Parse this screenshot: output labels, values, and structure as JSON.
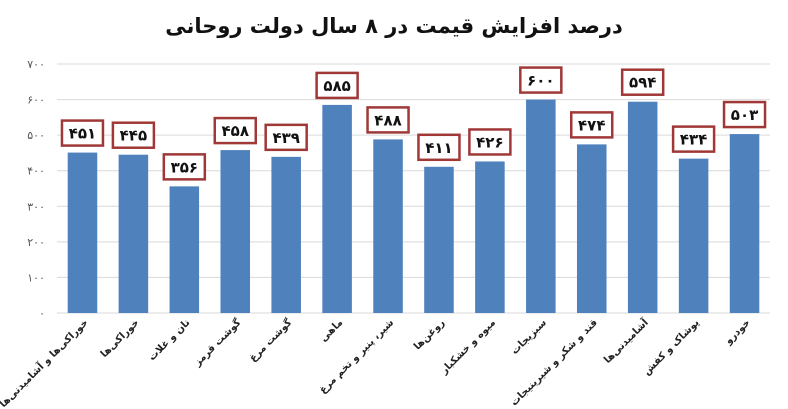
{
  "chart_data": {
    "type": "bar",
    "title": "درصد افزایش قیمت در ۸ سال دولت روحانی",
    "categories": [
      "خوراکی‌ها و آشامیدنی‌ها",
      "خوراکی‌ها",
      "نان و غلات",
      "گوشت قرمز",
      "گوشت مرغ",
      "ماهی",
      "شیر، پنیر و تخم مرغ",
      "روغن‌ها",
      "میوه و خشکبار",
      "سبزیجات",
      "قند و شکر و شیرینیجات",
      "آشامیدنی‌ها",
      "پوشاک و کفش",
      "خودرو"
    ],
    "values": [
      451,
      445,
      356,
      458,
      439,
      585,
      488,
      411,
      426,
      600,
      474,
      594,
      434,
      503
    ],
    "data_labels": [
      "۴۵۱",
      "۴۴۵",
      "۳۵۶",
      "۴۵۸",
      "۴۳۹",
      "۵۸۵",
      "۴۸۸",
      "۴۱۱",
      "۴۲۶",
      "۶۰۰",
      "۴۷۴",
      "۵۹۴",
      "۴۳۴",
      "۵۰۳"
    ],
    "y_ticks": [
      0,
      100,
      200,
      300,
      400,
      500,
      600,
      700
    ],
    "y_tick_labels": [
      "۰",
      "۱۰۰",
      "۲۰۰",
      "۳۰۰",
      "۴۰۰",
      "۵۰۰",
      "۶۰۰",
      "۷۰۰"
    ],
    "ylim": [
      0,
      700
    ],
    "grid": true,
    "legend": "none",
    "colors": {
      "bar": "#4f81bd",
      "label_border": "#a03838",
      "grid": "#d9d9d9"
    }
  }
}
